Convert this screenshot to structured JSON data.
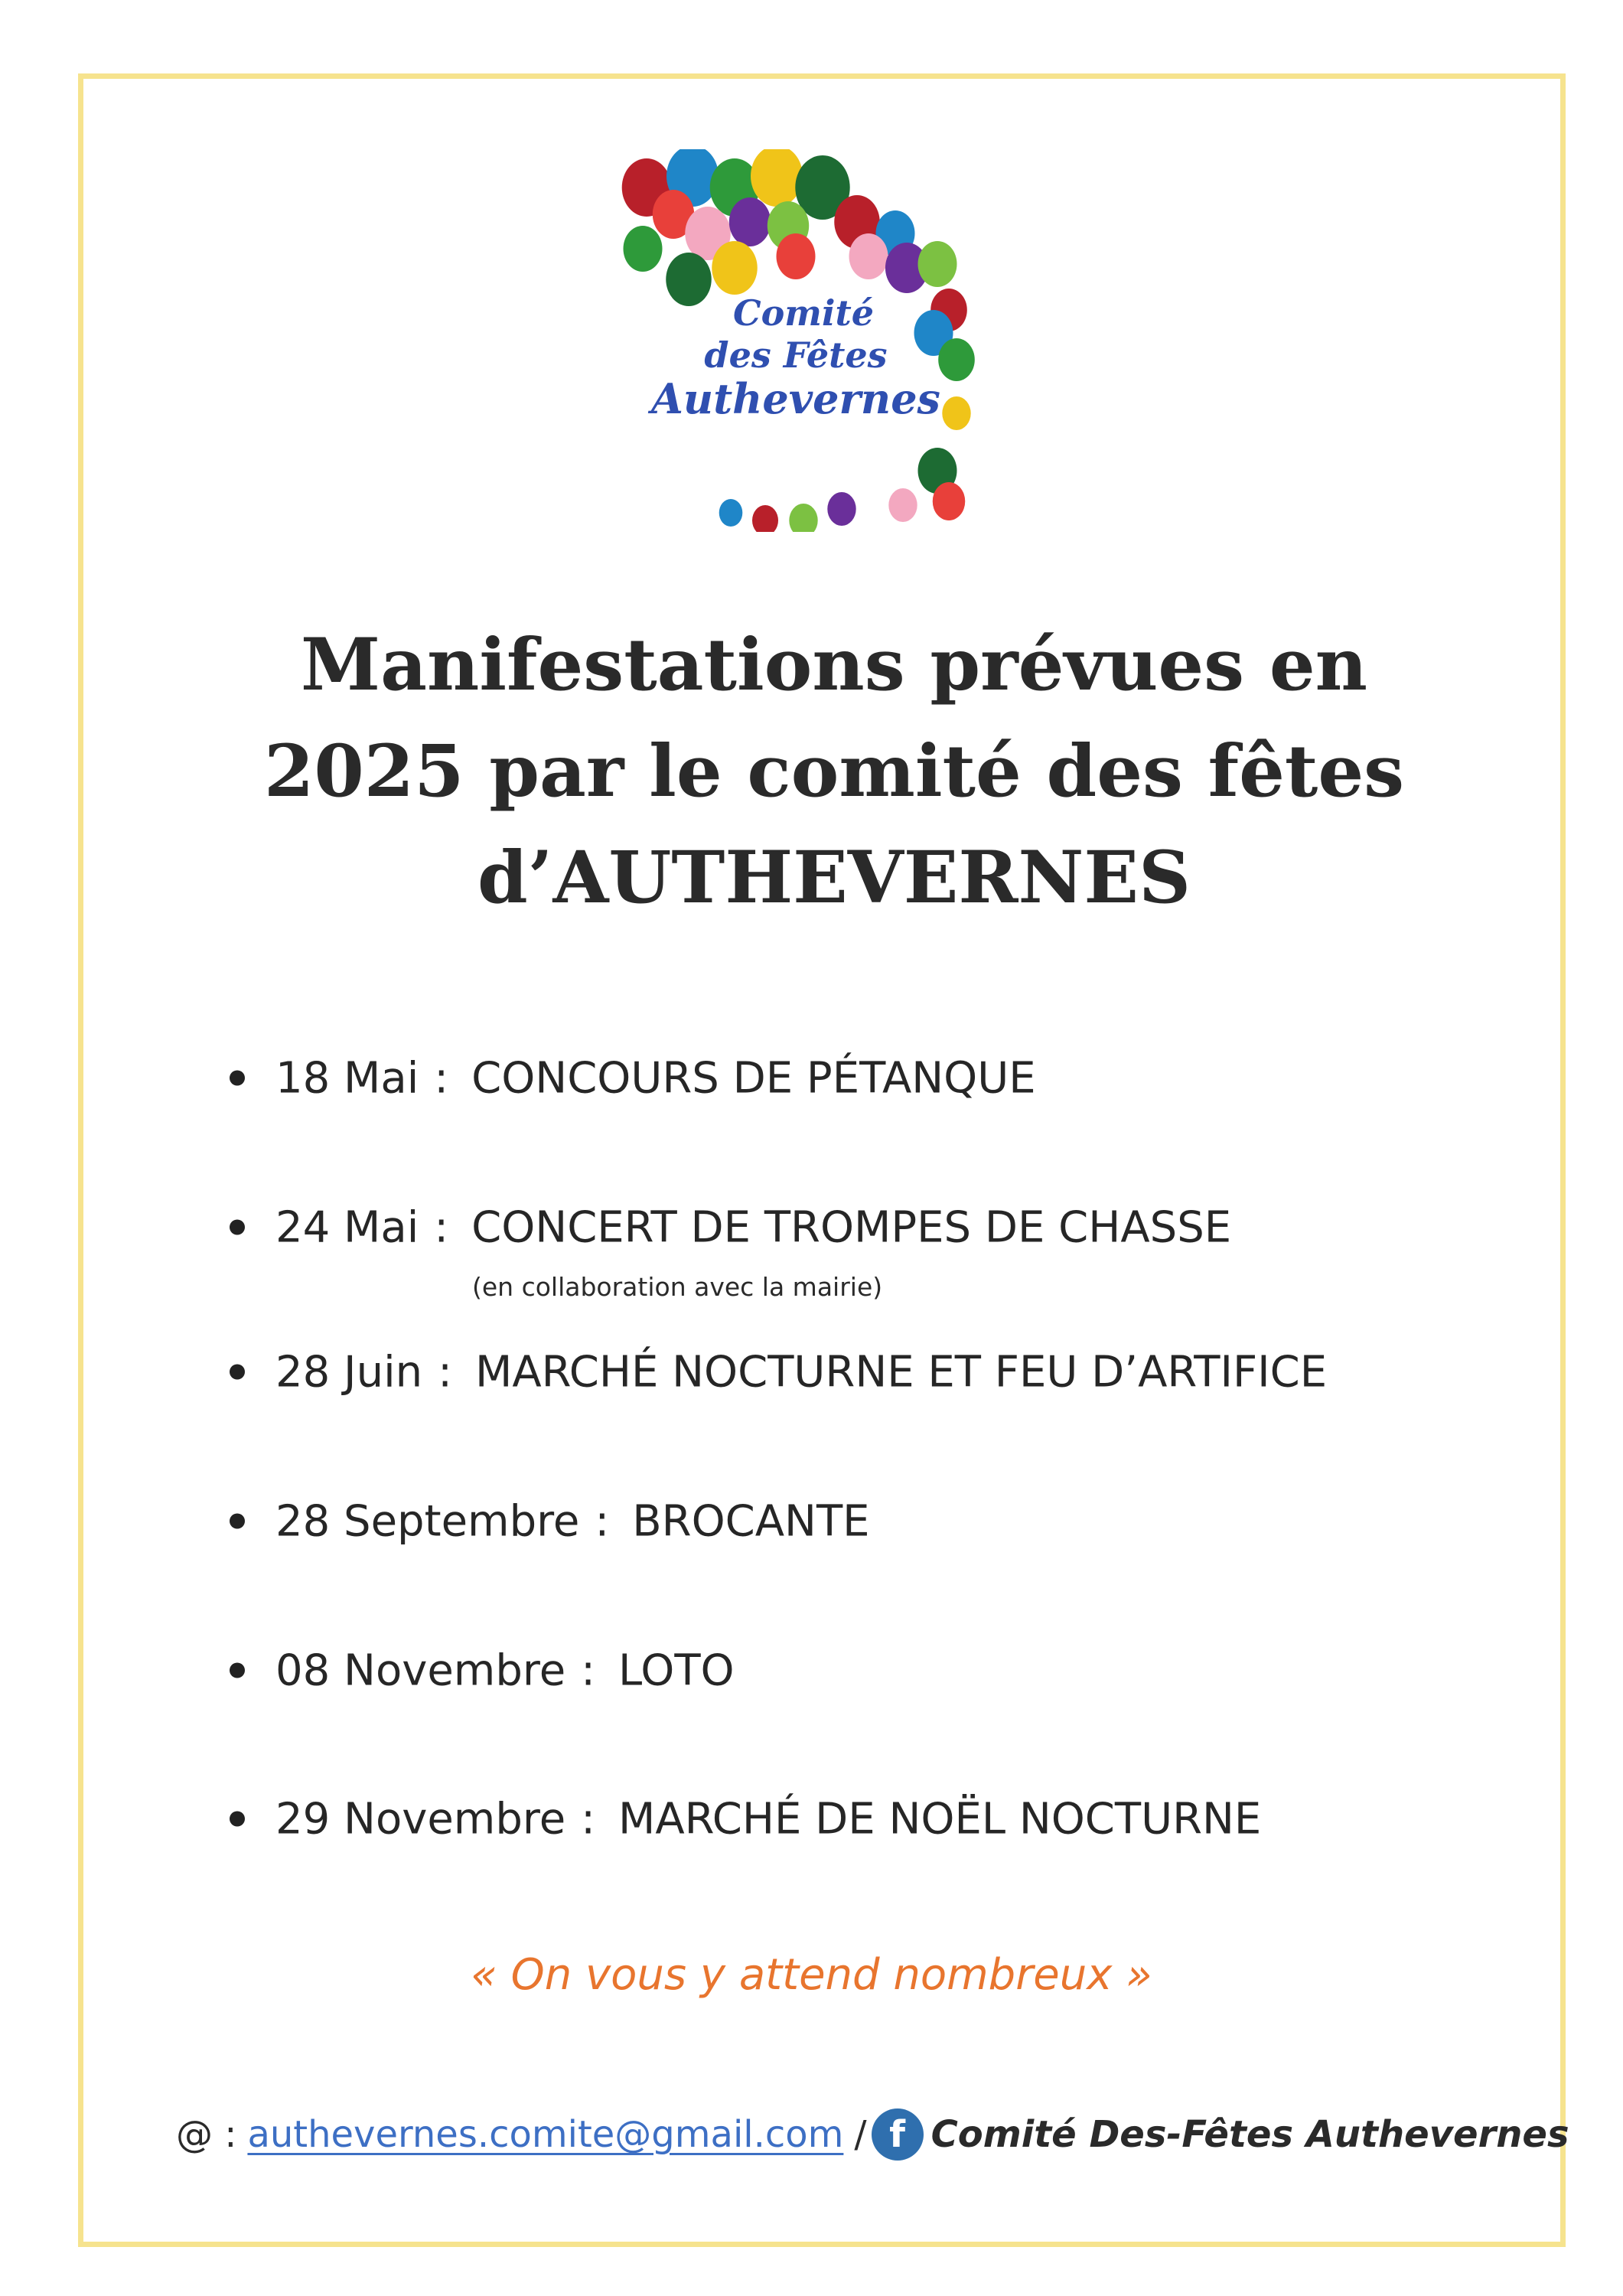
{
  "logo": {
    "line1": "Comité",
    "line2": "des Fêtes",
    "line3": "Authevernes"
  },
  "title": {
    "line1": "Manifestations prévues en",
    "line2": "2025 par le comité des fêtes",
    "line3": "d’AUTHEVERNES"
  },
  "events": [
    {
      "date": "18 Mai",
      "name": "CONCOURS DE PÉTANQUE"
    },
    {
      "date": "24 Mai",
      "name": "CONCERT DE TROMPES DE CHASSE",
      "note": "(en collaboration avec la mairie)"
    },
    {
      "date": "28 Juin",
      "name": "MARCHÉ NOCTURNE ET FEU D’ARTIFICE"
    },
    {
      "date": "28 Septembre",
      "name": "BROCANTE"
    },
    {
      "date": "08 Novembre",
      "name": "LOTO"
    },
    {
      "date": "29 Novembre",
      "name": "MARCHÉ DE NOËL NOCTURNE"
    }
  ],
  "separator": ":",
  "quote": "« On vous y attend nombreux »",
  "footer": {
    "at_label": "@ :",
    "email": "authevernes.comite@gmail.com",
    "slash": "/",
    "facebook_icon": "facebook-icon",
    "facebook_glyph": "f",
    "facebook_name": "Comité Des-Fêtes Authevernes"
  },
  "colors": {
    "border": "#f6e38e",
    "quote": "#e8752e",
    "link": "#3d6fc4",
    "facebook": "#2f6fae",
    "logo_text": "#2f4fb0"
  }
}
